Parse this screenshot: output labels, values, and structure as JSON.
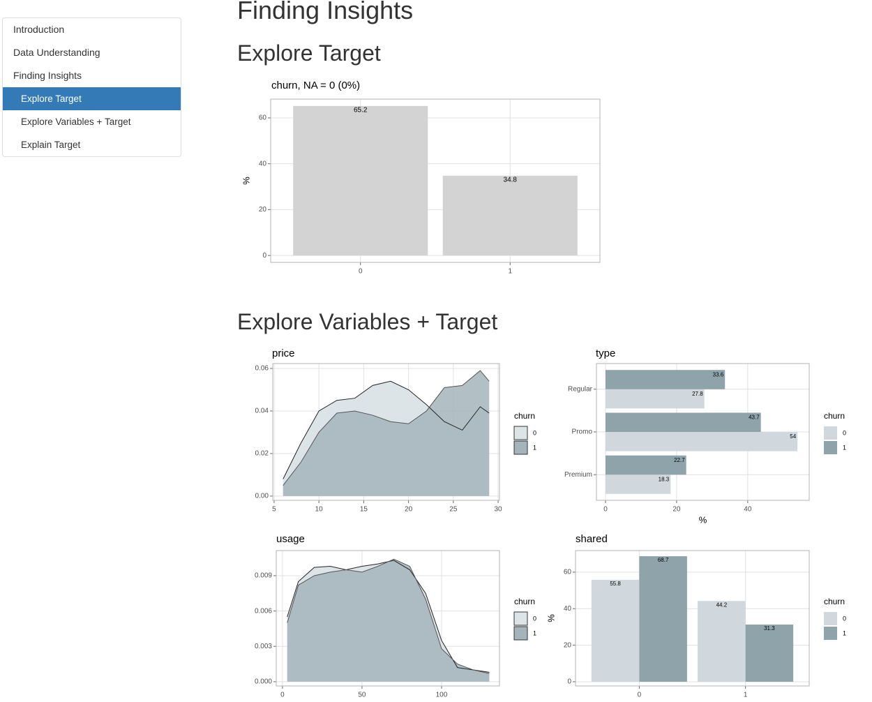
{
  "nav": {
    "items": [
      "Introduction",
      "Data Understanding",
      "Finding Insights",
      "Explore Target",
      "Explore Variables + Target",
      "Explain Target"
    ],
    "active": 3
  },
  "headings": {
    "h1": "Finding Insights",
    "h2_target": "Explore Target",
    "h2_variables": "Explore Variables + Target"
  },
  "chart_data": [
    {
      "type": "bar",
      "title": "churn, NA = 0 (0%)",
      "ylabel": "%",
      "categories": [
        "0",
        "1"
      ],
      "values": [
        65.2,
        34.8
      ],
      "color": "#d3d3d3",
      "ylim": [
        -3.0,
        68.2
      ],
      "yticks": [
        0,
        20,
        40,
        60
      ],
      "grid": true
    },
    {
      "type": "area",
      "title": "price",
      "legend_title": "churn",
      "x": [
        6,
        8,
        10,
        12,
        14,
        16,
        18,
        20,
        22,
        24,
        26,
        28,
        29
      ],
      "series": [
        {
          "name": "0",
          "color": "#dde4e7",
          "values": [
            0.008,
            0.025,
            0.04,
            0.045,
            0.046,
            0.052,
            0.054,
            0.05,
            0.043,
            0.035,
            0.031,
            0.042,
            0.039
          ]
        },
        {
          "name": "1",
          "color": "#a5b4bb",
          "values": [
            0.005,
            0.016,
            0.03,
            0.039,
            0.04,
            0.038,
            0.035,
            0.034,
            0.04,
            0.051,
            0.052,
            0.059,
            0.054
          ]
        }
      ],
      "xlim": [
        4.85,
        30.15
      ],
      "xticks": [
        5,
        10,
        15,
        20,
        25,
        30
      ],
      "ylim": [
        -0.002,
        0.0623
      ],
      "yticks": [
        {
          "value": 0,
          "label": "0.00"
        },
        {
          "value": 0.02,
          "label": "0.02"
        },
        {
          "value": 0.04,
          "label": "0.04"
        },
        {
          "value": 0.06,
          "label": "0.06"
        }
      ],
      "grid": true
    },
    {
      "type": "bar",
      "orientation": "horizontal",
      "title": "type",
      "xlabel": "%",
      "legend_title": "churn",
      "categories": [
        "Premium",
        "Promo",
        "Regular"
      ],
      "series": [
        {
          "name": "0",
          "color": "#d0d8dd",
          "values": [
            18.3,
            54,
            27.8
          ]
        },
        {
          "name": "1",
          "color": "#8fa3ab",
          "values": [
            22.7,
            43.7,
            33.6
          ]
        }
      ],
      "xlim": [
        -2.55,
        57.3
      ],
      "xticks": [
        0,
        20,
        40
      ],
      "grid": true
    },
    {
      "type": "area",
      "title": "usage",
      "legend_title": "churn",
      "x": [
        3,
        10,
        20,
        30,
        40,
        50,
        60,
        70,
        80,
        90,
        100,
        110,
        120,
        130
      ],
      "series": [
        {
          "name": "0",
          "color": "#dde4e7",
          "values": [
            0.0055,
            0.0085,
            0.0097,
            0.0098,
            0.0095,
            0.0098,
            0.01,
            0.0103,
            0.0095,
            0.0075,
            0.0035,
            0.0012,
            0.001,
            0.0008
          ]
        },
        {
          "name": "1",
          "color": "#a5b4bb",
          "values": [
            0.005,
            0.0082,
            0.009,
            0.0093,
            0.0095,
            0.0093,
            0.0098,
            0.0104,
            0.0098,
            0.007,
            0.0028,
            0.0015,
            0.001,
            0.0007
          ]
        }
      ],
      "xlim": [
        -3.9,
        136.4
      ],
      "xticks": [
        0,
        50,
        100
      ],
      "ylim": [
        -0.00036,
        0.01113
      ],
      "yticks": [
        {
          "value": 0,
          "label": "0.000"
        },
        {
          "value": 0.003,
          "label": "0.003"
        },
        {
          "value": 0.006,
          "label": "0.006"
        },
        {
          "value": 0.009,
          "label": "0.009"
        }
      ],
      "grid": true
    },
    {
      "type": "bar",
      "title": "shared",
      "ylabel": "%",
      "legend_title": "churn",
      "categories": [
        "0",
        "1"
      ],
      "series": [
        {
          "name": "0",
          "color": "#d0d8dd",
          "values": [
            55.8,
            44.2
          ]
        },
        {
          "name": "1",
          "color": "#8fa3ab",
          "values": [
            68.7,
            31.3
          ]
        }
      ],
      "ylim": [
        -2.3,
        71.8
      ],
      "yticks": [
        0,
        20,
        40,
        60
      ],
      "grid": true
    }
  ]
}
